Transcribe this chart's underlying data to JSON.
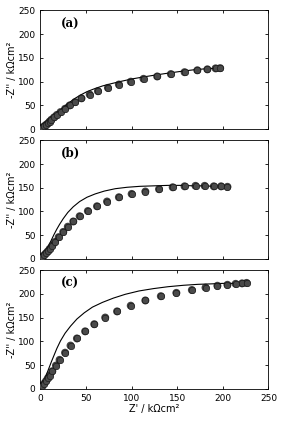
{
  "panels": [
    {
      "label": "(a)",
      "line_x": [
        0,
        1,
        2,
        3,
        4,
        5,
        6,
        7,
        8,
        9,
        10,
        12,
        14,
        16,
        18,
        21,
        24,
        28,
        33,
        38,
        44,
        51,
        59,
        68,
        78,
        89,
        101,
        113,
        126,
        140,
        155,
        168,
        180,
        190,
        197
      ],
      "line_y": [
        0,
        1.5,
        3,
        4.5,
        6,
        7.5,
        9,
        11,
        13,
        15,
        17,
        20,
        24,
        28,
        32,
        38,
        44,
        51,
        58,
        65,
        72,
        79,
        85,
        91,
        96,
        101,
        106,
        110,
        114,
        118,
        122,
        125,
        127,
        128,
        128.5
      ],
      "dot_x": [
        2,
        4,
        6,
        8,
        10,
        12,
        15,
        18,
        22,
        27,
        32,
        38,
        45,
        54,
        63,
        74,
        86,
        99,
        113,
        128,
        143,
        158,
        172,
        183,
        192,
        197
      ],
      "dot_y": [
        3,
        6,
        9,
        12,
        16,
        20,
        25,
        30,
        36,
        43,
        50,
        57,
        65,
        73,
        80,
        87,
        94,
        100,
        106,
        111,
        116,
        120,
        124,
        126,
        128,
        128.5
      ],
      "ylim": [
        0,
        250
      ],
      "xlim": [
        0,
        250
      ]
    },
    {
      "label": "(b)",
      "line_x": [
        0,
        1,
        2,
        3,
        4,
        5,
        6,
        7,
        9,
        11,
        13,
        15,
        18,
        21,
        25,
        30,
        36,
        43,
        51,
        60,
        70,
        82,
        95,
        109,
        124,
        140,
        155,
        168,
        180,
        190,
        198,
        205
      ],
      "line_y": [
        0,
        2,
        4,
        7,
        10,
        14,
        18,
        22,
        29,
        36,
        44,
        52,
        63,
        73,
        85,
        98,
        110,
        121,
        130,
        137,
        143,
        148,
        151,
        153,
        154,
        155,
        155,
        154,
        154,
        153,
        153,
        152
      ],
      "dot_x": [
        2,
        4,
        6,
        8,
        10,
        13,
        16,
        20,
        25,
        30,
        36,
        43,
        52,
        62,
        73,
        86,
        100,
        115,
        130,
        145,
        158,
        170,
        180,
        190,
        198,
        205
      ],
      "dot_y": [
        4,
        8,
        12,
        16,
        21,
        28,
        36,
        46,
        57,
        68,
        79,
        90,
        101,
        111,
        121,
        130,
        137,
        142,
        147,
        151,
        153,
        154,
        154,
        153,
        153,
        152
      ],
      "ylim": [
        0,
        250
      ],
      "xlim": [
        0,
        250
      ]
    },
    {
      "label": "(c)",
      "line_x": [
        0,
        1,
        2,
        3,
        4,
        5,
        6,
        8,
        10,
        12,
        15,
        18,
        22,
        27,
        33,
        40,
        48,
        57,
        68,
        80,
        93,
        108,
        124,
        140,
        157,
        173,
        188,
        200,
        210,
        218,
        224,
        228
      ],
      "line_y": [
        0,
        3,
        7,
        11,
        16,
        21,
        27,
        37,
        47,
        57,
        71,
        85,
        101,
        117,
        132,
        147,
        160,
        172,
        182,
        191,
        199,
        206,
        211,
        215,
        218,
        220,
        221,
        222,
        222,
        222,
        223,
        223
      ],
      "dot_x": [
        2,
        4,
        6,
        8,
        10,
        13,
        17,
        21,
        27,
        33,
        40,
        49,
        59,
        71,
        84,
        99,
        115,
        132,
        149,
        166,
        181,
        194,
        205,
        214,
        221,
        226
      ],
      "dot_y": [
        6,
        11,
        16,
        22,
        28,
        37,
        49,
        61,
        76,
        91,
        106,
        121,
        136,
        150,
        163,
        175,
        186,
        195,
        202,
        208,
        213,
        217,
        219,
        221,
        222,
        223
      ],
      "ylim": [
        0,
        250
      ],
      "xlim": [
        0,
        250
      ]
    }
  ],
  "xlabel": "Z' / kΩcm²",
  "ylabel": "-Z'' / kΩcm²",
  "xticks": [
    0,
    50,
    100,
    150,
    200,
    250
  ],
  "yticks": [
    0,
    50,
    100,
    150,
    200,
    250
  ],
  "line_color": "black",
  "dot_facecolor": "#4a4a4a",
  "dot_edgecolor": "#111111",
  "dot_size": 22,
  "background_color": "white",
  "tick_fontsize": 6.5,
  "label_fontsize": 7,
  "panel_label_fontsize": 8.5
}
